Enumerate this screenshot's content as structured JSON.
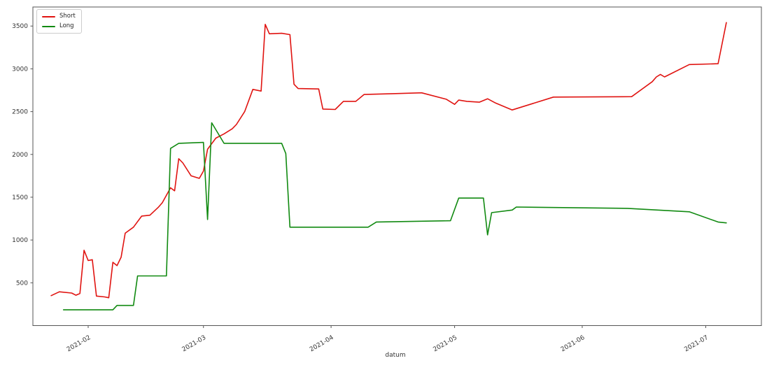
{
  "figure": {
    "xlabel": "datum",
    "background_color": "#ffffff",
    "spine_color": "#555555",
    "tick_label_color": "#333333"
  },
  "legend": {
    "position": "upper-left",
    "items": [
      {
        "label": "Short",
        "color": "#e01310"
      },
      {
        "label": "Long",
        "color": "#118a11"
      }
    ]
  },
  "axes": {
    "y_ticks": [
      500,
      1000,
      1500,
      2000,
      2500,
      3000,
      3500
    ],
    "x_ticks": [
      "2021-02",
      "2021-03",
      "2021-04",
      "2021-05",
      "2021-06",
      "2021-07"
    ]
  },
  "chart_data": {
    "type": "line",
    "title": "",
    "xlabel": "datum",
    "ylabel": "",
    "x_axis_type": "date",
    "x_tick_labels": [
      "2021-02",
      "2021-03",
      "2021-04",
      "2021-05",
      "2021-06",
      "2021-07"
    ],
    "ylim": [
      0,
      3700
    ],
    "grid": false,
    "legend_position": "upper-left",
    "series": [
      {
        "name": "Short",
        "color": "#e01310",
        "points": [
          [
            "2021-01-23",
            350
          ],
          [
            "2021-01-25",
            395
          ],
          [
            "2021-01-28",
            380
          ],
          [
            "2021-01-29",
            355
          ],
          [
            "2021-01-30",
            375
          ],
          [
            "2021-01-31",
            880
          ],
          [
            "2021-02-01",
            760
          ],
          [
            "2021-02-02",
            770
          ],
          [
            "2021-02-03",
            345
          ],
          [
            "2021-02-05",
            335
          ],
          [
            "2021-02-06",
            325
          ],
          [
            "2021-02-07",
            740
          ],
          [
            "2021-02-08",
            700
          ],
          [
            "2021-02-09",
            800
          ],
          [
            "2021-02-10",
            1080
          ],
          [
            "2021-02-12",
            1150
          ],
          [
            "2021-02-14",
            1280
          ],
          [
            "2021-02-16",
            1290
          ],
          [
            "2021-02-18",
            1380
          ],
          [
            "2021-02-19",
            1435
          ],
          [
            "2021-02-21",
            1610
          ],
          [
            "2021-02-22",
            1575
          ],
          [
            "2021-02-23",
            1950
          ],
          [
            "2021-02-24",
            1900
          ],
          [
            "2021-02-26",
            1750
          ],
          [
            "2021-02-28",
            1720
          ],
          [
            "2021-03-01",
            1805
          ],
          [
            "2021-03-02",
            2060
          ],
          [
            "2021-03-04",
            2190
          ],
          [
            "2021-03-06",
            2240
          ],
          [
            "2021-03-08",
            2300
          ],
          [
            "2021-03-09",
            2350
          ],
          [
            "2021-03-11",
            2500
          ],
          [
            "2021-03-13",
            2760
          ],
          [
            "2021-03-15",
            2740
          ],
          [
            "2021-03-16",
            3520
          ],
          [
            "2021-03-17",
            3410
          ],
          [
            "2021-03-20",
            3415
          ],
          [
            "2021-03-22",
            3400
          ],
          [
            "2021-03-23",
            2820
          ],
          [
            "2021-03-24",
            2770
          ],
          [
            "2021-03-29",
            2765
          ],
          [
            "2021-03-30",
            2530
          ],
          [
            "2021-04-02",
            2525
          ],
          [
            "2021-04-04",
            2620
          ],
          [
            "2021-04-07",
            2620
          ],
          [
            "2021-04-09",
            2700
          ],
          [
            "2021-04-16",
            2710
          ],
          [
            "2021-04-23",
            2720
          ],
          [
            "2021-04-29",
            2645
          ],
          [
            "2021-05-01",
            2585
          ],
          [
            "2021-05-02",
            2635
          ],
          [
            "2021-05-04",
            2620
          ],
          [
            "2021-05-07",
            2610
          ],
          [
            "2021-05-09",
            2650
          ],
          [
            "2021-05-11",
            2600
          ],
          [
            "2021-05-15",
            2520
          ],
          [
            "2021-05-25",
            2670
          ],
          [
            "2021-06-13",
            2675
          ],
          [
            "2021-06-18",
            2850
          ],
          [
            "2021-06-19",
            2905
          ],
          [
            "2021-06-20",
            2935
          ],
          [
            "2021-06-21",
            2905
          ],
          [
            "2021-06-27",
            3050
          ],
          [
            "2021-07-04",
            3060
          ],
          [
            "2021-07-06",
            3540
          ]
        ]
      },
      {
        "name": "Long",
        "color": "#118a11",
        "points": [
          [
            "2021-01-26",
            185
          ],
          [
            "2021-02-07",
            185
          ],
          [
            "2021-02-08",
            235
          ],
          [
            "2021-02-12",
            235
          ],
          [
            "2021-02-13",
            580
          ],
          [
            "2021-02-20",
            580
          ],
          [
            "2021-02-21",
            2070
          ],
          [
            "2021-02-23",
            2130
          ],
          [
            "2021-03-01",
            2140
          ],
          [
            "2021-03-02",
            1240
          ],
          [
            "2021-03-03",
            2370
          ],
          [
            "2021-03-06",
            2130
          ],
          [
            "2021-03-20",
            2130
          ],
          [
            "2021-03-21",
            2010
          ],
          [
            "2021-03-22",
            1150
          ],
          [
            "2021-04-10",
            1150
          ],
          [
            "2021-04-12",
            1210
          ],
          [
            "2021-04-30",
            1225
          ],
          [
            "2021-05-02",
            1490
          ],
          [
            "2021-05-08",
            1490
          ],
          [
            "2021-05-09",
            1060
          ],
          [
            "2021-05-10",
            1320
          ],
          [
            "2021-05-15",
            1350
          ],
          [
            "2021-05-16",
            1385
          ],
          [
            "2021-06-12",
            1370
          ],
          [
            "2021-06-27",
            1330
          ],
          [
            "2021-07-04",
            1210
          ],
          [
            "2021-07-06",
            1200
          ]
        ]
      }
    ]
  }
}
